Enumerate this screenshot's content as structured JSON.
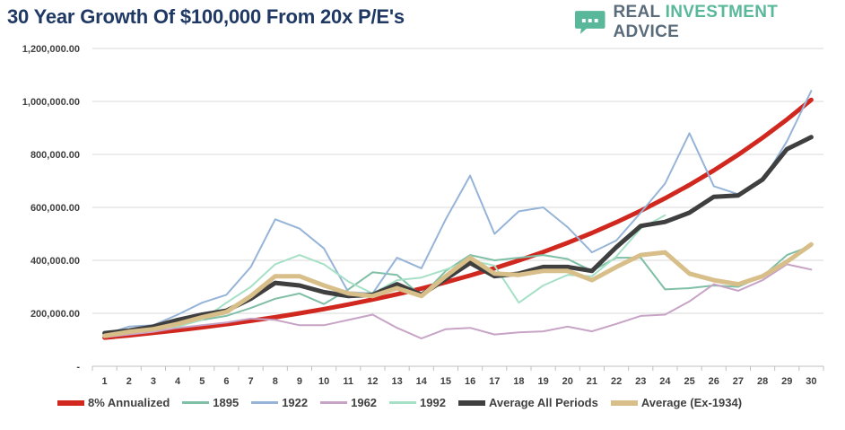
{
  "header": {
    "title": "30 Year Growth Of $100,000 From 20x P/E's",
    "brand": {
      "real": "REAL ",
      "investment": "INVESTMENT ",
      "advice": "ADVICE",
      "icon": "speech-bubble-chart-icon"
    }
  },
  "colors": {
    "annualized": "#d0281f",
    "s1895": "#7fbfa5",
    "s1922": "#96b4d8",
    "s1962": "#c7a3c6",
    "s1992": "#a6e0c6",
    "avg_all": "#3f3f3f",
    "avg_ex": "#d8bf8a",
    "grid": "#d9d9d9",
    "title": "#1f3864"
  },
  "chart_data": {
    "type": "line",
    "title": "30 Year Growth Of $100,000 From 20x P/E's",
    "xlabel": "",
    "ylabel": "",
    "ylim": [
      0,
      1200000
    ],
    "yticks": [
      0,
      200000,
      400000,
      600000,
      800000,
      1000000,
      1200000
    ],
    "ytick_labels": [
      "-",
      "200,000.00",
      "400,000.00",
      "600,000.00",
      "800,000.00",
      "1,000,000.00",
      "1,200,000.00"
    ],
    "grid": true,
    "legend_position": "bottom",
    "x": [
      1,
      2,
      3,
      4,
      5,
      6,
      7,
      8,
      9,
      10,
      11,
      12,
      13,
      14,
      15,
      16,
      17,
      18,
      19,
      20,
      21,
      22,
      23,
      24,
      25,
      26,
      27,
      28,
      29,
      30
    ],
    "series": [
      {
        "name": "8% Annualized",
        "color": "#d0281f",
        "width": 5,
        "values": [
          108000,
          116640,
          125971,
          136049,
          146933,
          158687,
          171382,
          185093,
          199900,
          215892,
          233164,
          251817,
          271962,
          293719,
          317217,
          342594,
          370002,
          399602,
          431570,
          466096,
          503383,
          543654,
          587146,
          634118,
          684848,
          739635,
          798806,
          862711,
          931727,
          1006266
        ]
      },
      {
        "name": "1895",
        "color": "#7fbfa5",
        "width": 2,
        "values": [
          115000,
          125000,
          135000,
          155000,
          175000,
          190000,
          220000,
          255000,
          275000,
          235000,
          290000,
          355000,
          345000,
          265000,
          360000,
          420000,
          400000,
          410000,
          420000,
          405000,
          360000,
          410000,
          410000,
          290000,
          295000,
          305000,
          300000,
          340000,
          420000,
          455000
        ]
      },
      {
        "name": "1922",
        "color": "#96b4d8",
        "width": 2,
        "values": [
          120000,
          150000,
          155000,
          195000,
          240000,
          270000,
          375000,
          555000,
          520000,
          445000,
          280000,
          275000,
          410000,
          370000,
          555000,
          720000,
          500000,
          585000,
          600000,
          525000,
          430000,
          475000,
          580000,
          690000,
          880000,
          680000,
          650000,
          700000,
          850000,
          1040000
        ]
      },
      {
        "name": "1962",
        "color": "#c7a3c6",
        "width": 2,
        "values": [
          110000,
          120000,
          130000,
          145000,
          155000,
          165000,
          180000,
          175000,
          155000,
          155000,
          175000,
          195000,
          145000,
          105000,
          140000,
          145000,
          120000,
          128000,
          132000,
          150000,
          132000,
          160000,
          190000,
          195000,
          245000,
          310000,
          285000,
          325000,
          385000,
          365000
        ]
      },
      {
        "name": "1992",
        "color": "#a6e0c6",
        "width": 2,
        "values": [
          118000,
          130000,
          145000,
          150000,
          175000,
          240000,
          300000,
          385000,
          420000,
          385000,
          320000,
          275000,
          325000,
          335000,
          365000,
          400000,
          380000,
          240000,
          305000,
          345000,
          340000,
          415000,
          520000,
          570000,
          null,
          null,
          null,
          null,
          null,
          null
        ]
      },
      {
        "name": "Average All Periods",
        "color": "#3f3f3f",
        "width": 5,
        "values": [
          125000,
          135000,
          150000,
          175000,
          195000,
          210000,
          255000,
          315000,
          305000,
          280000,
          265000,
          270000,
          310000,
          270000,
          330000,
          390000,
          340000,
          350000,
          375000,
          375000,
          360000,
          450000,
          530000,
          545000,
          580000,
          640000,
          645000,
          705000,
          820000,
          865000
        ]
      },
      {
        "name": "Average (Ex-1934)",
        "color": "#d8bf8a",
        "width": 5,
        "values": [
          115000,
          130000,
          140000,
          160000,
          185000,
          205000,
          265000,
          340000,
          340000,
          305000,
          275000,
          265000,
          295000,
          265000,
          340000,
          410000,
          350000,
          345000,
          360000,
          360000,
          325000,
          375000,
          420000,
          430000,
          350000,
          325000,
          310000,
          340000,
          395000,
          460000
        ]
      }
    ]
  }
}
